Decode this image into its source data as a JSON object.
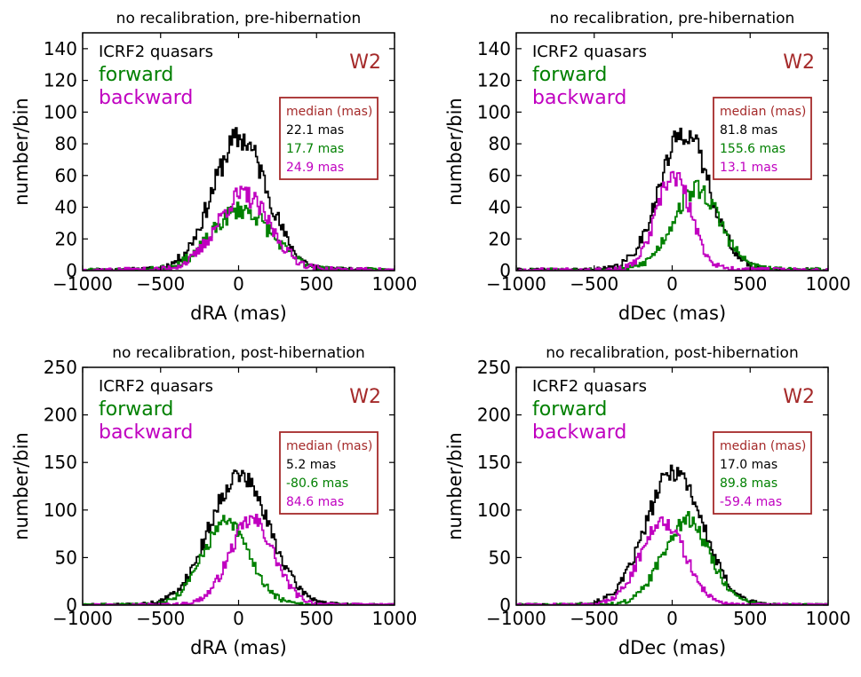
{
  "colors": {
    "icrf": "#000000",
    "forward": "#008000",
    "backward": "#c000c0",
    "band": "#a52a2a"
  },
  "chart_data": [
    {
      "type": "histogram",
      "title": "no recalibration, pre-hibernation",
      "xlabel": "dRA (mas)",
      "ylabel": "number/bin",
      "xlim": [
        -1000,
        1000
      ],
      "ylim": [
        0,
        150
      ],
      "xticks": [
        "−1000",
        "−500",
        "0",
        "500",
        "1000"
      ],
      "xtick_values": [
        -1000,
        -500,
        0,
        500,
        1000
      ],
      "yticks": [
        "0",
        "20",
        "40",
        "60",
        "80",
        "100",
        "120",
        "140"
      ],
      "ytick_values": [
        0,
        20,
        40,
        60,
        80,
        100,
        120,
        140
      ],
      "band": "W2",
      "legend": [
        "ICRF2 quasars",
        "forward",
        "backward"
      ],
      "median_title": "median (mas)",
      "medians": [
        "22.1 mas",
        "17.7 mas",
        "24.9 mas"
      ],
      "series": [
        {
          "name": "ICRF2 quasars",
          "center": 10,
          "sigma": 175,
          "peak": 82,
          "noise": 9,
          "seed": 11
        },
        {
          "name": "forward",
          "center": 20,
          "sigma": 190,
          "peak": 37,
          "noise": 6,
          "seed": 23
        },
        {
          "name": "backward",
          "center": 30,
          "sigma": 170,
          "peak": 46,
          "noise": 7,
          "seed": 37
        }
      ]
    },
    {
      "type": "histogram",
      "title": "no recalibration, pre-hibernation",
      "xlabel": "dDec (mas)",
      "ylabel": "number/bin",
      "xlim": [
        -1000,
        1000
      ],
      "ylim": [
        0,
        150
      ],
      "xticks": [
        "−1000",
        "−500",
        "0",
        "500",
        "1000"
      ],
      "xtick_values": [
        -1000,
        -500,
        0,
        500,
        1000
      ],
      "yticks": [
        "0",
        "20",
        "40",
        "60",
        "80",
        "100",
        "120",
        "140"
      ],
      "ytick_values": [
        0,
        20,
        40,
        60,
        80,
        100,
        120,
        140
      ],
      "band": "W2",
      "legend": [
        "ICRF2 quasars",
        "forward",
        "backward"
      ],
      "median_title": "median (mas)",
      "medians": [
        "81.8 mas",
        "155.6 mas",
        "13.1 mas"
      ],
      "series": [
        {
          "name": "ICRF2 quasars",
          "center": 80,
          "sigma": 160,
          "peak": 86,
          "noise": 8,
          "seed": 41
        },
        {
          "name": "forward",
          "center": 155,
          "sigma": 150,
          "peak": 50,
          "noise": 7,
          "seed": 53
        },
        {
          "name": "backward",
          "center": 10,
          "sigma": 110,
          "peak": 58,
          "noise": 7,
          "seed": 67
        }
      ]
    },
    {
      "type": "histogram",
      "title": "no recalibration, post-hibernation",
      "xlabel": "dRA (mas)",
      "ylabel": "number/bin",
      "xlim": [
        -1000,
        1000
      ],
      "ylim": [
        0,
        250
      ],
      "xticks": [
        "−1000",
        "−500",
        "0",
        "500",
        "1000"
      ],
      "xtick_values": [
        -1000,
        -500,
        0,
        500,
        1000
      ],
      "yticks": [
        "0",
        "50",
        "100",
        "150",
        "200",
        "250"
      ],
      "ytick_values": [
        0,
        50,
        100,
        150,
        200,
        250
      ],
      "band": "W2",
      "legend": [
        "ICRF2 quasars",
        "forward",
        "backward"
      ],
      "median_title": "median (mas)",
      "medians": [
        "5.2 mas",
        "-80.6 mas",
        "84.6 mas"
      ],
      "series": [
        {
          "name": "ICRF2 quasars",
          "center": 5,
          "sigma": 190,
          "peak": 135,
          "noise": 11,
          "seed": 71
        },
        {
          "name": "forward",
          "center": -80,
          "sigma": 150,
          "peak": 85,
          "noise": 9,
          "seed": 83
        },
        {
          "name": "backward",
          "center": 85,
          "sigma": 140,
          "peak": 88,
          "noise": 9,
          "seed": 97
        }
      ]
    },
    {
      "type": "histogram",
      "title": "no recalibration, post-hibernation",
      "xlabel": "dDec (mas)",
      "ylabel": "number/bin",
      "xlim": [
        -1000,
        1000
      ],
      "ylim": [
        0,
        250
      ],
      "xticks": [
        "−1000",
        "−500",
        "0",
        "500",
        "1000"
      ],
      "xtick_values": [
        -1000,
        -500,
        0,
        500,
        1000
      ],
      "yticks": [
        "0",
        "50",
        "100",
        "150",
        "200",
        "250"
      ],
      "ytick_values": [
        0,
        50,
        100,
        150,
        200,
        250
      ],
      "band": "W2",
      "legend": [
        "ICRF2 quasars",
        "forward",
        "backward"
      ],
      "median_title": "median (mas)",
      "medians": [
        "17.0 mas",
        "89.8 mas",
        "-59.4 mas"
      ],
      "series": [
        {
          "name": "ICRF2 quasars",
          "center": 15,
          "sigma": 180,
          "peak": 140,
          "noise": 11,
          "seed": 101
        },
        {
          "name": "forward",
          "center": 90,
          "sigma": 150,
          "peak": 88,
          "noise": 9,
          "seed": 113
        },
        {
          "name": "backward",
          "center": -60,
          "sigma": 140,
          "peak": 88,
          "noise": 9,
          "seed": 127
        }
      ]
    }
  ]
}
